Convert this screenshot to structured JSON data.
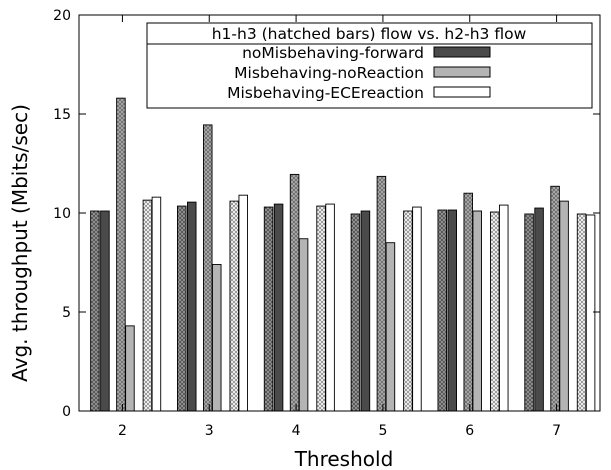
{
  "chart_data": {
    "type": "bar",
    "title": "",
    "xlabel": "Threshold",
    "ylabel": "Avg. throughput (Mbits/sec)",
    "ylim": [
      0,
      20
    ],
    "yticks": [
      0,
      5,
      10,
      15,
      20
    ],
    "categories": [
      "2",
      "3",
      "4",
      "5",
      "6",
      "7"
    ],
    "grid": false,
    "legend_position": "top-right",
    "legend_title": "h1-h3 (hatched bars) flow vs. h2-h3 flow",
    "series": [
      {
        "name": "noMisbehaving-forward",
        "flow": "h1-h3",
        "hatched": true,
        "fill": "#4a4a4a",
        "values": [
          10.1,
          10.35,
          10.3,
          9.95,
          10.15,
          9.95
        ]
      },
      {
        "name": "noMisbehaving-forward",
        "flow": "h2-h3",
        "hatched": false,
        "fill": "#4a4a4a",
        "values": [
          10.1,
          10.55,
          10.45,
          10.1,
          10.15,
          10.25
        ]
      },
      {
        "name": "Misbehaving-noReaction",
        "flow": "h1-h3",
        "hatched": true,
        "fill": "#b4b4b4",
        "values": [
          15.8,
          14.45,
          11.95,
          11.85,
          11.0,
          11.35
        ]
      },
      {
        "name": "Misbehaving-noReaction",
        "flow": "h2-h3",
        "hatched": false,
        "fill": "#b4b4b4",
        "values": [
          4.3,
          7.4,
          8.7,
          8.5,
          10.1,
          10.6
        ]
      },
      {
        "name": "Misbehaving-ECEreaction",
        "flow": "h1-h3",
        "hatched": true,
        "fill": "#ffffff",
        "values": [
          10.65,
          10.6,
          10.35,
          10.1,
          10.05,
          9.95
        ]
      },
      {
        "name": "Misbehaving-ECEreaction",
        "flow": "h2-h3",
        "hatched": false,
        "fill": "#ffffff",
        "values": [
          10.8,
          10.9,
          10.45,
          10.3,
          10.4,
          9.9
        ]
      }
    ]
  }
}
